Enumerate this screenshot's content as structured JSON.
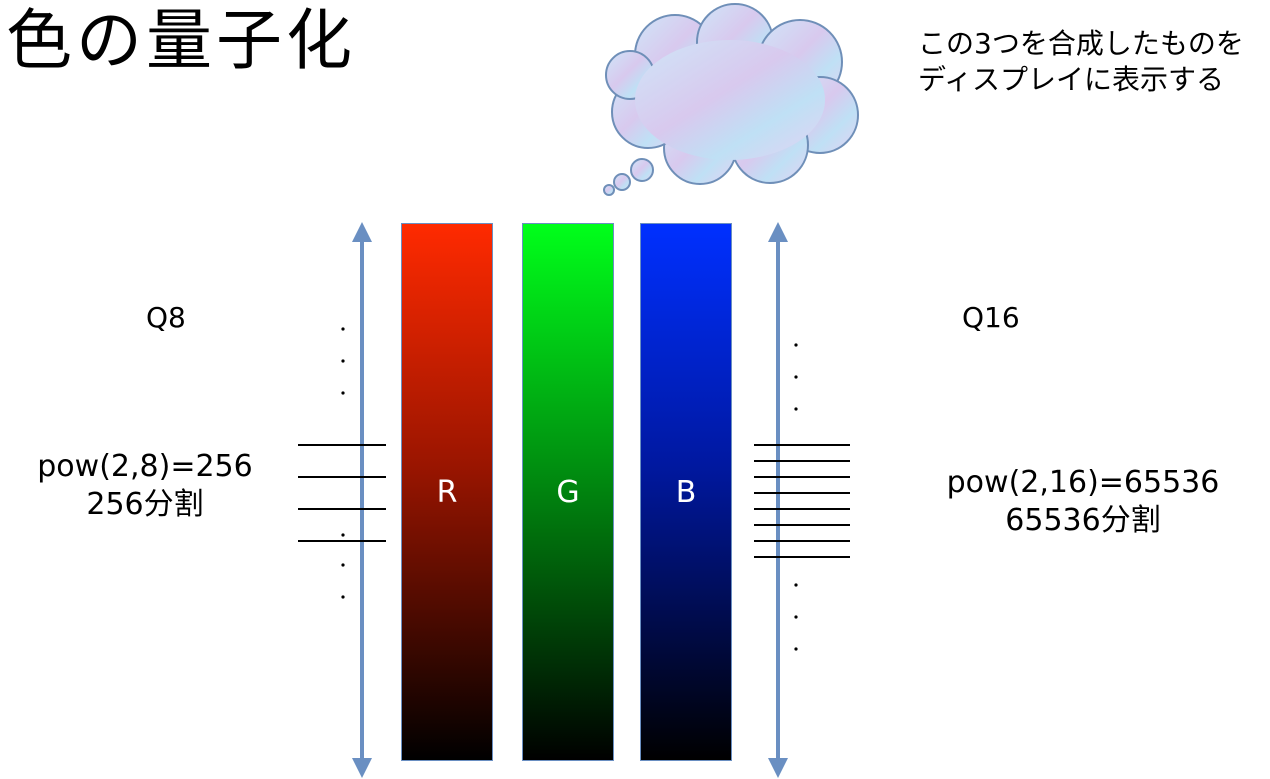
{
  "title": "色の量子化",
  "note": {
    "line1": "この3つを合成したものを",
    "line2": "ディスプレイに表示する"
  },
  "left": {
    "label": "Q8",
    "formula": "pow(2,8)=256",
    "divisions": "256分割"
  },
  "right": {
    "label": "Q16",
    "formula": "pow(2,16)=65536",
    "divisions": "65536分割"
  },
  "bars": [
    {
      "label": "R",
      "color": "#ff2a00"
    },
    {
      "label": "G",
      "color": "#00ff1a"
    },
    {
      "label": "B",
      "color": "#0030ff"
    }
  ],
  "colors": {
    "arrow": "#6a8fc2",
    "line": "#000000"
  },
  "icons": {
    "thought": "thought-cloud-icon",
    "arrow": "double-headed-arrow-icon"
  }
}
